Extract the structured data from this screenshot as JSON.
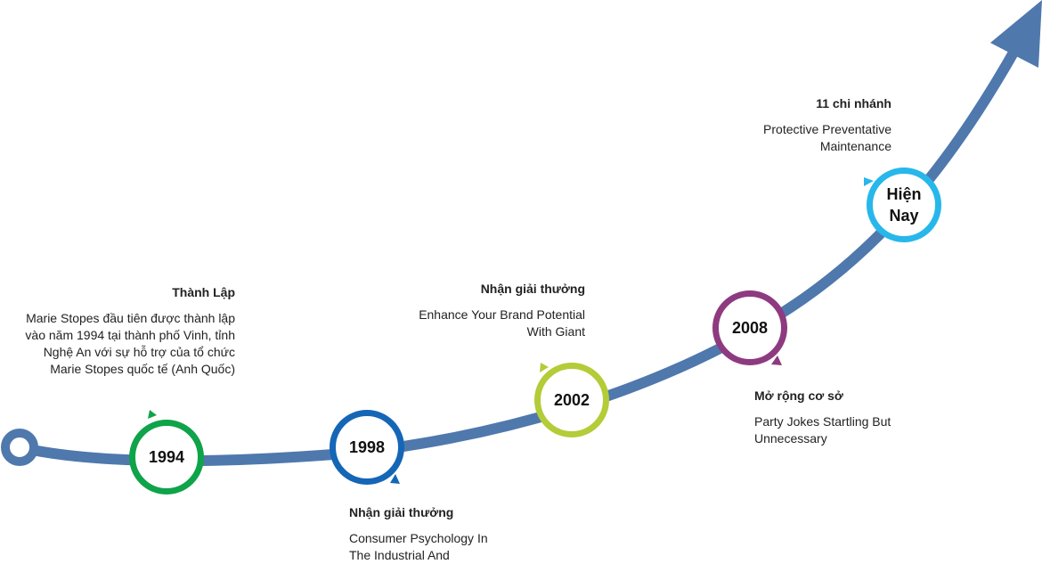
{
  "colors": {
    "path": "#4f78ad",
    "m1994": "#0fa34a",
    "m1998": "#1566b6",
    "m2002": "#b3cc37",
    "m2008": "#8e3a80",
    "mNow": "#27b7ea"
  },
  "milestones": [
    {
      "key": "m1994",
      "label": "1994",
      "title": "Thành Lập",
      "text": "Marie Stopes đầu tiên được thành lập vào năm 1994 tại thành phố Vinh, tỉnh Nghệ An với sự hỗ trợ của tổ chức Marie Stopes quốc tế (Anh Quốc)"
    },
    {
      "key": "m1998",
      "label": "1998",
      "title": "Nhận giải thưởng",
      "text": "Consumer Psychology In The Industrial And"
    },
    {
      "key": "m2002",
      "label": "2002",
      "title": "Nhận giải thưởng",
      "text": "Enhance Your Brand Potential With Giant"
    },
    {
      "key": "m2008",
      "label": "2008",
      "title": "Mở rộng cơ sở",
      "text": "Party Jokes Startling But Unnecessary"
    },
    {
      "key": "mNow",
      "label": "Hiện\nNay",
      "title": "11 chi nhánh",
      "text": "Protective Preventative Maintenance"
    }
  ]
}
